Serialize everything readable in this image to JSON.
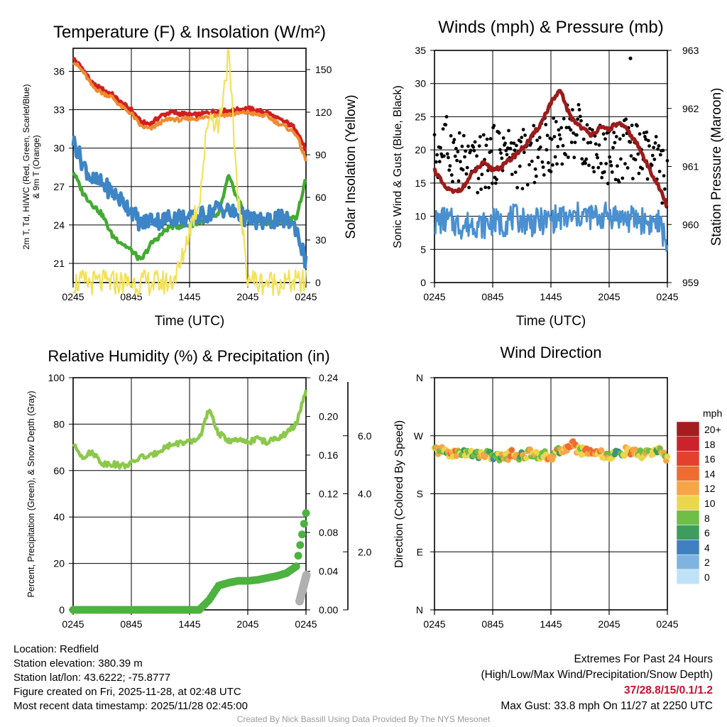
{
  "chart_data": [
    {
      "id": "temp",
      "type": "line",
      "title": "Temperature (F) & Insolation (W/m²)",
      "xlabel": "Time (UTC)",
      "ylabel_lines": [
        "2m T, Td, HI/WC (Red, Green, Scarlet/Blue)",
        "& 9m T (Orange)"
      ],
      "y2label": "Solar Insolation (Yellow)",
      "xticks": [
        "0245",
        "0845",
        "1445",
        "2045",
        "0245"
      ],
      "yticks": [
        21,
        24,
        27,
        30,
        33,
        36
      ],
      "y2ticks": [
        0,
        30,
        60,
        90,
        120,
        150
      ],
      "ylim": [
        19.5,
        37.8
      ],
      "y2lim": [
        0,
        165
      ],
      "x": [
        0,
        1,
        2,
        3,
        4,
        5,
        6,
        7,
        8,
        9,
        10,
        11,
        12,
        13,
        14,
        15,
        16,
        17,
        18,
        19,
        20,
        21,
        22,
        23,
        24
      ],
      "series": [
        {
          "name": "2m T",
          "color": "#d02020",
          "values": [
            37.0,
            36.2,
            35.0,
            34.6,
            34.2,
            33.5,
            33.0,
            32.0,
            31.9,
            32.5,
            32.8,
            32.7,
            32.6,
            32.6,
            32.8,
            32.9,
            32.9,
            33.0,
            33.1,
            32.9,
            32.8,
            32.3,
            32.0,
            31.5,
            29.8
          ]
        },
        {
          "name": "9m T",
          "color": "#f08a30",
          "values": [
            36.8,
            36.0,
            34.8,
            34.3,
            34.0,
            33.2,
            32.7,
            31.7,
            31.5,
            32.0,
            32.3,
            32.2,
            32.3,
            32.3,
            32.5,
            32.6,
            32.6,
            32.7,
            32.8,
            32.6,
            32.5,
            32.0,
            31.6,
            31.1,
            29.0
          ]
        },
        {
          "name": "Td",
          "color": "#44aa33",
          "values": [
            28.2,
            26.5,
            25.6,
            24.8,
            23.2,
            22.6,
            22.0,
            21.2,
            22.5,
            23.2,
            23.9,
            23.9,
            24.0,
            24.2,
            24.5,
            24.8,
            27.8,
            26.0,
            24.5,
            24.3,
            24.2,
            24.2,
            24.3,
            24.6,
            27.6
          ]
        },
        {
          "name": "HI/WC",
          "color": "#3d85c6",
          "values": [
            30.6,
            28.8,
            27.5,
            27.2,
            26.6,
            25.9,
            25.2,
            24.0,
            24.5,
            24.3,
            24.6,
            24.7,
            24.4,
            24.7,
            24.9,
            25.4,
            25.1,
            24.8,
            24.5,
            24.3,
            24.2,
            24.5,
            24.4,
            23.8,
            21.0
          ]
        },
        {
          "name": "Solar Insolation",
          "color": "#f2e25a",
          "axis": "y2",
          "values": [
            0,
            0,
            0,
            0,
            0,
            0,
            0,
            0,
            0,
            0,
            0,
            10,
            38,
            58,
            120,
            110,
            160,
            60,
            5,
            0,
            0,
            0,
            0,
            0,
            0
          ]
        }
      ]
    },
    {
      "id": "wind",
      "type": "line",
      "title": "Winds (mph) & Pressure (mb)",
      "xlabel": "Time (UTC)",
      "ylabel": "Sonic Wind & Gust (Blue, Black)",
      "y2label": "Station Pressure (Maroon)",
      "xticks": [
        "0245",
        "0845",
        "1445",
        "2045",
        "0245"
      ],
      "yticks": [
        0,
        5,
        10,
        15,
        20,
        25,
        30,
        35
      ],
      "y2ticks": [
        959,
        960,
        961,
        962,
        963
      ],
      "ylim": [
        0,
        35
      ],
      "y2lim": [
        959,
        963
      ],
      "x": [
        0,
        1,
        2,
        3,
        4,
        5,
        6,
        7,
        8,
        9,
        10,
        11,
        12,
        13,
        14,
        15,
        16,
        17,
        18,
        19,
        20,
        21,
        22,
        23,
        24
      ],
      "series": [
        {
          "name": "Sonic Wind",
          "color": "#4a90d0",
          "values": [
            9.0,
            9.5,
            9.0,
            8.5,
            9.0,
            8.6,
            9.2,
            8.8,
            9.8,
            9.5,
            9.0,
            9.2,
            9.5,
            9.8,
            9.5,
            10.2,
            10.0,
            9.8,
            10.3,
            9.9,
            9.5,
            9.6,
            9.0,
            9.2,
            6.0
          ]
        },
        {
          "name": "Gust",
          "color": "#000000",
          "marker": "dot",
          "values": [
            18.5,
            21.0,
            19.5,
            18.0,
            17.0,
            18.0,
            19.0,
            20.5,
            19.0,
            18.5,
            19.0,
            20.0,
            21.0,
            22.0,
            23.0,
            22.5,
            21.0,
            20.0,
            19.0,
            19.5,
            20.5,
            19.5,
            18.5,
            17.5,
            15.0
          ]
        },
        {
          "name": "Station Pressure",
          "color": "#9b1c1c",
          "axis": "y2",
          "values": [
            960.95,
            960.65,
            960.55,
            960.65,
            960.9,
            961.05,
            960.95,
            961.0,
            961.15,
            961.3,
            961.5,
            961.75,
            962.1,
            962.3,
            961.85,
            961.7,
            961.55,
            961.65,
            961.65,
            961.75,
            961.6,
            961.35,
            961.0,
            960.7,
            960.3
          ]
        }
      ],
      "annotation": "Max Gust 33.8 mph"
    },
    {
      "id": "rh",
      "type": "line",
      "title": "Relative Humidity (%) & Precipitation (in)",
      "ylabel": "Percent, Precipitation (Green), & Snow Depth (Gray)",
      "xticks": [
        "0245",
        "0845",
        "1445",
        "2045",
        "0245"
      ],
      "yticks": [
        0,
        20,
        40,
        60,
        80,
        100
      ],
      "y2ticks": [
        "0.00",
        "0.04",
        "0.08",
        "0.12",
        "0.16",
        "0.20",
        "0.24"
      ],
      "y3ticks": [
        "2.0",
        "4.0",
        "6.0"
      ],
      "ylim": [
        0,
        100
      ],
      "y2lim": [
        0,
        0.24
      ],
      "y3lim": [
        0,
        8.0
      ],
      "x": [
        0,
        1,
        2,
        3,
        4,
        5,
        6,
        7,
        8,
        9,
        10,
        11,
        12,
        13,
        14,
        15,
        16,
        17,
        18,
        19,
        20,
        21,
        22,
        23,
        24
      ],
      "series": [
        {
          "name": "Relative Humidity",
          "color": "#8cc84b",
          "values": [
            71,
            66,
            68,
            63,
            63,
            62,
            63,
            66,
            66,
            69,
            71,
            72,
            72,
            74,
            86,
            76,
            73,
            73,
            72,
            74,
            72,
            74,
            76,
            80,
            95
          ]
        },
        {
          "name": "Precipitation",
          "color": "#4db240",
          "axis": "y2",
          "marker": "dot",
          "values": [
            0,
            0,
            0,
            0,
            0,
            0,
            0,
            0,
            0,
            0,
            0,
            0,
            0,
            0,
            0.01,
            0.025,
            0.028,
            0.03,
            0.03,
            0.031,
            0.033,
            0.035,
            0.038,
            0.045,
            0.1
          ]
        },
        {
          "name": "Snow Depth",
          "color": "#b0b0b0",
          "axis": "y3",
          "marker": "dot",
          "values": [
            null,
            null,
            null,
            null,
            null,
            null,
            null,
            null,
            null,
            null,
            null,
            null,
            null,
            null,
            null,
            null,
            null,
            null,
            null,
            null,
            null,
            null,
            null,
            0.3,
            1.2
          ]
        }
      ]
    },
    {
      "id": "dir",
      "type": "scatter",
      "title": "Wind Direction",
      "ylabel": "Direction (Colored By Speed)",
      "xticks": [
        "0245",
        "0845",
        "1445",
        "2045",
        "0245"
      ],
      "yticks": [
        "N",
        "E",
        "S",
        "W",
        "N"
      ],
      "ylim": [
        0,
        360
      ],
      "x": [
        0,
        1,
        2,
        3,
        4,
        5,
        6,
        7,
        8,
        9,
        10,
        11,
        12,
        13,
        14,
        15,
        16,
        17,
        18,
        19,
        20,
        21,
        22,
        23,
        24
      ],
      "direction_deg": [
        248,
        246,
        242,
        245,
        240,
        243,
        238,
        236,
        242,
        238,
        244,
        240,
        238,
        246,
        258,
        247,
        246,
        244,
        238,
        243,
        246,
        240,
        244,
        246,
        236
      ],
      "speed_mph": [
        10,
        9,
        12,
        8,
        8,
        11,
        7,
        10,
        12,
        9,
        10,
        9,
        12,
        9,
        14,
        11,
        12,
        12,
        10,
        7,
        12,
        9,
        10,
        8,
        12
      ],
      "legend_title": "mph",
      "legend_labels": [
        "20+",
        "18",
        "16",
        "14",
        "12",
        "10",
        "8",
        "6",
        "4",
        "2",
        "0"
      ],
      "legend_colors": [
        "#a51d21",
        "#cc2229",
        "#e3412e",
        "#ee6b31",
        "#f7a545",
        "#ead64f",
        "#6fbe45",
        "#3d9d5e",
        "#3f80c0",
        "#7fb4e0",
        "#bfe2f7"
      ]
    }
  ],
  "colors": {
    "grid": "#000000",
    "background": "#ffffff",
    "extremes": "#c8102e",
    "credit": "#9a9a9a"
  },
  "footer": {
    "location": "Location: Redfield",
    "elevation": "Station elevation: 380.39 m",
    "latlon": "Station lat/lon: 43.6222; -75.8777",
    "created": "Figure created on Fri, 2025-11-28, at 02:48 UTC",
    "recent": "Most recent data timestamp: 2025/11/28 02:45:00",
    "extremes_title": "Extremes For Past 24 Hours",
    "extremes_desc": "(High/Low/Max Wind/Precipitation/Snow Depth)",
    "extremes_values": "37/28.8/15/0.1/1.2",
    "max_gust": "Max Gust: 33.8 mph On 11/27 at 2250 UTC",
    "credit": "Created By Nick Bassill Using Data Provided By The NYS Mesonet"
  }
}
